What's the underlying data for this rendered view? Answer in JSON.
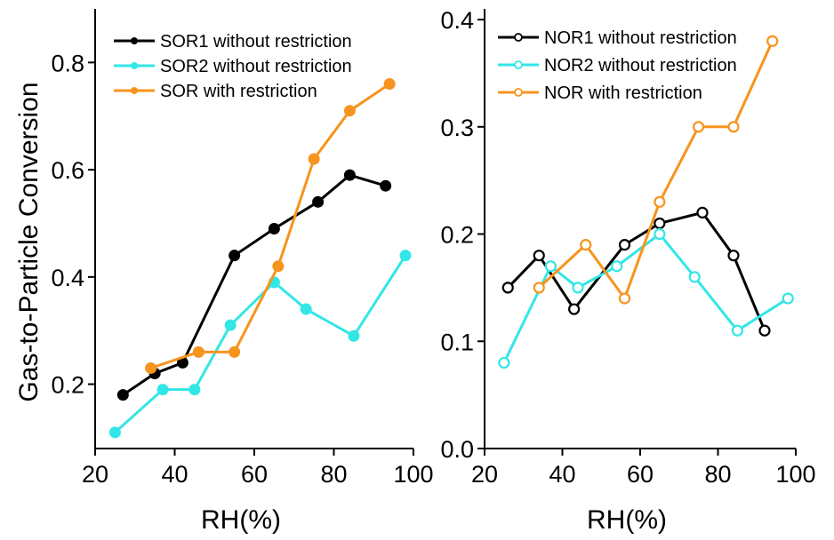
{
  "chart_data": [
    {
      "type": "line",
      "panel": "left",
      "ylabel": "Gas-to-Particle Conversion",
      "xlabel": "RH(%)",
      "xlim": [
        20,
        100
      ],
      "ylim": [
        0.08,
        0.9
      ],
      "xticks": [
        20,
        40,
        60,
        80,
        100
      ],
      "yticks": [
        0.2,
        0.4,
        0.6,
        0.8
      ],
      "ytick_labels": [
        "0.2",
        "0.4",
        "0.6",
        "0.8"
      ],
      "legend_position": "top-left",
      "series": [
        {
          "name": "SOR1 without restriction",
          "color": "#000000",
          "marker": "filled-circle",
          "x": [
            27,
            35,
            42,
            55,
            65,
            76,
            84,
            93
          ],
          "y": [
            0.18,
            0.22,
            0.24,
            0.44,
            0.49,
            0.54,
            0.59,
            0.57
          ]
        },
        {
          "name": "SOR2 without restriction",
          "color": "#33e6e6",
          "marker": "filled-circle",
          "x": [
            25,
            37,
            45,
            54,
            65,
            73,
            85,
            98
          ],
          "y": [
            0.11,
            0.19,
            0.19,
            0.31,
            0.39,
            0.34,
            0.29,
            0.44
          ]
        },
        {
          "name": "SOR with restriction",
          "color": "#f7941d",
          "marker": "filled-circle",
          "x": [
            34,
            46,
            55,
            66,
            75,
            84,
            94
          ],
          "y": [
            0.23,
            0.26,
            0.26,
            0.42,
            0.62,
            0.71,
            0.76
          ]
        }
      ]
    },
    {
      "type": "line",
      "panel": "right",
      "ylabel": "",
      "xlabel": "RH(%)",
      "xlim": [
        20,
        100
      ],
      "ylim": [
        0.0,
        0.41
      ],
      "xticks": [
        20,
        40,
        60,
        80,
        100
      ],
      "yticks": [
        0.0,
        0.1,
        0.2,
        0.3,
        0.4
      ],
      "ytick_labels": [
        "0.0",
        "0.1",
        "0.2",
        "0.3",
        "0.4"
      ],
      "legend_position": "top-left",
      "series": [
        {
          "name": "NOR1 without restriction",
          "color": "#000000",
          "marker": "open-circle",
          "x": [
            26,
            34,
            43,
            56,
            65,
            76,
            84,
            92
          ],
          "y": [
            0.15,
            0.18,
            0.13,
            0.19,
            0.21,
            0.22,
            0.18,
            0.11
          ]
        },
        {
          "name": "NOR2 without restriction",
          "color": "#33e6e6",
          "marker": "open-circle",
          "x": [
            25,
            37,
            44,
            54,
            65,
            74,
            85,
            98
          ],
          "y": [
            0.08,
            0.17,
            0.15,
            0.17,
            0.2,
            0.16,
            0.11,
            0.14
          ]
        },
        {
          "name": "NOR with restriction",
          "color": "#f7941d",
          "marker": "open-circle",
          "x": [
            34,
            46,
            56,
            65,
            75,
            84,
            94
          ],
          "y": [
            0.15,
            0.19,
            0.14,
            0.23,
            0.3,
            0.3,
            0.38
          ]
        }
      ]
    }
  ]
}
